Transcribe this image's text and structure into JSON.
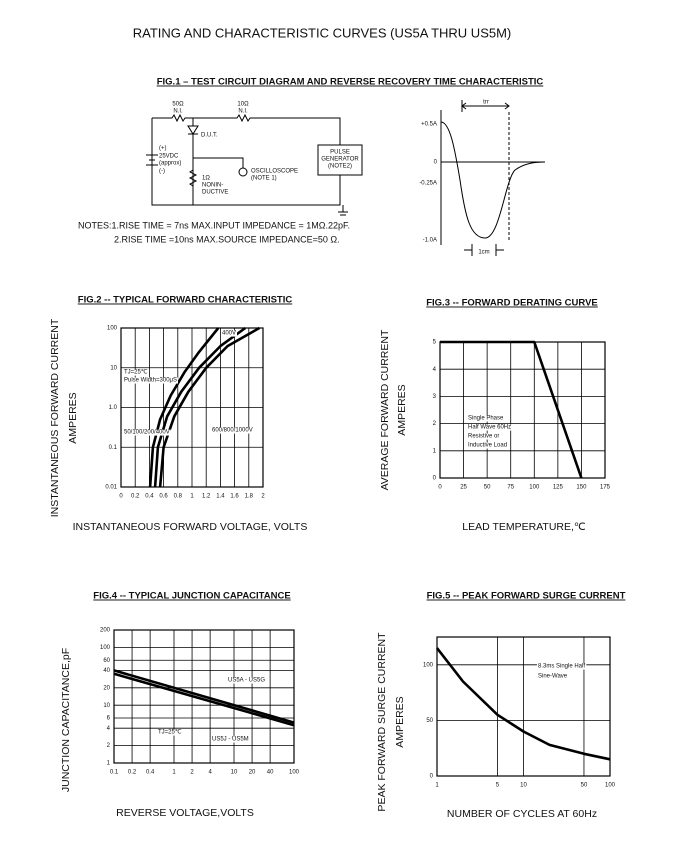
{
  "title": "RATING AND CHARACTERISTIC CURVES (US5A THRU US5M)",
  "fig1": {
    "title": "FIG.1 – TEST CIRCUIT DIAGRAM AND REVERSE RECOVERY TIME CHARACTERISTIC",
    "r1": [
      "50Ω",
      "N.I."
    ],
    "r2": [
      "10Ω",
      "N.I."
    ],
    "dut": "D.U.T.",
    "source": [
      "(+)",
      "25VDC",
      "(approx)",
      "(-)"
    ],
    "r3": [
      "1Ω",
      "NONIN-",
      "DUCTIVE"
    ],
    "scope": [
      "OSCILLOSCOPE",
      "(NOTE 1)"
    ],
    "generator": [
      "PULSE",
      "GENERATOR",
      "(NOTE2)"
    ],
    "notes": [
      "NOTES:1.RISE TIME = 7ns MAX.INPUT IMPEDANCE = 1MΩ.22pF.",
      "2.RISE TIME =10ns MAX.SOURCE IMPEDANCE=50 Ω."
    ],
    "wave": {
      "levels": [
        "+0.5A",
        "0",
        "-0.25A",
        "-1.0A"
      ],
      "trr": "trr",
      "scale": "1cm"
    }
  },
  "chart_data": [
    {
      "type": "line",
      "title": "FIG.2 -- TYPICAL FORWARD CHARACTERISTIC",
      "xlabel": "INSTANTANEOUS FORWARD VOLTAGE,  VOLTS",
      "ylabel": [
        "INSTANTANEOUS FORWARD CURRENT",
        "AMPERES"
      ],
      "xlim": [
        0,
        2
      ],
      "ylim": [
        0.01,
        100
      ],
      "ylog": true,
      "grid": true,
      "xticks": [
        0,
        0.2,
        0.4,
        0.6,
        0.8,
        1,
        1.2,
        1.4,
        1.6,
        1.8,
        2
      ],
      "yticks": [
        0.01,
        0.1,
        {
          "value": 1,
          "label": "1.0"
        },
        10,
        100
      ],
      "series": [
        {
          "color": "#000000",
          "x": [
            0.41,
            0.45,
            0.55,
            0.7,
            0.9,
            1.1,
            1.37
          ],
          "values": [
            0.01,
            0.1,
            0.5,
            2,
            8,
            25,
            100
          ]
        },
        {
          "color": "#000000",
          "x": [
            0.48,
            0.52,
            0.65,
            0.85,
            1.1,
            1.4,
            1.75
          ],
          "values": [
            0.01,
            0.1,
            0.6,
            2.5,
            10,
            35,
            100
          ]
        },
        {
          "color": "#000000",
          "x": [
            0.55,
            0.6,
            0.75,
            0.95,
            1.2,
            1.5,
            1.95
          ],
          "values": [
            0.01,
            0.1,
            0.6,
            2.5,
            10,
            35,
            100
          ]
        }
      ],
      "annotations": [
        "400V",
        "TJ=25℃",
        "Pulse Width=300μS",
        "50/100/200/400V",
        "600/800/1000V"
      ]
    },
    {
      "type": "line",
      "title": "FIG.3 -- FORWARD DERATING CURVE",
      "xlabel": "LEAD TEMPERATURE,℃",
      "ylabel": [
        "AVERAGE FORWARD CURRENT",
        "AMPERES"
      ],
      "xlim": [
        0,
        175
      ],
      "ylim": [
        0,
        5
      ],
      "grid": true,
      "xticks": [
        0,
        25,
        50,
        75,
        100,
        125,
        150,
        175
      ],
      "yticks": [
        0,
        1,
        2,
        3,
        4,
        5
      ],
      "series": [
        {
          "color": "#000000",
          "x": [
            0,
            100,
            150
          ],
          "values": [
            5,
            5,
            0
          ]
        }
      ],
      "annotations": [
        "Single Phase",
        "Half Wave 60Hz",
        "Resistive or",
        "Inductive Load"
      ]
    },
    {
      "type": "line",
      "title": "FIG.4 -- TYPICAL JUNCTION CAPACITANCE",
      "xlabel": "REVERSE VOLTAGE,VOLTS",
      "ylabel": [
        "JUNCTION CAPACITANCE,pF"
      ],
      "xlim": [
        0.1,
        100
      ],
      "ylim": [
        1,
        200
      ],
      "xlog": true,
      "ylog": true,
      "grid": true,
      "xticks": [
        0.1,
        0.2,
        0.4,
        1,
        2,
        4,
        10,
        20,
        40,
        100
      ],
      "yticks": [
        1,
        2,
        4,
        6,
        10,
        20,
        40,
        60,
        100,
        200
      ],
      "series": [
        {
          "color": "#000000",
          "x": [
            0.1,
            100
          ],
          "values": [
            40,
            5
          ]
        },
        {
          "color": "#000000",
          "x": [
            0.1,
            100
          ],
          "values": [
            35,
            4.5
          ]
        }
      ],
      "annotations": [
        "US5A - US5G",
        "US5J - US5M",
        "TJ=25℃"
      ]
    },
    {
      "type": "line",
      "title": "FIG.5 -- PEAK FORWARD SURGE CURRENT",
      "xlabel": "NUMBER OF CYCLES AT 60Hz",
      "ylabel": [
        "PEAK FORWARD SURGE CURRENT",
        "AMPERES"
      ],
      "xlim": [
        1,
        100
      ],
      "ylim": [
        0,
        125
      ],
      "xlog": true,
      "grid": true,
      "xticks": [
        1,
        5,
        10,
        50,
        100
      ],
      "yticks": [
        0,
        50,
        100
      ],
      "series": [
        {
          "color": "#000000",
          "x": [
            1,
            2,
            5,
            10,
            20,
            50,
            100
          ],
          "values": [
            115,
            85,
            55,
            40,
            28,
            20,
            15
          ]
        }
      ],
      "annotations": [
        "8.3ms Single Half",
        "Sine-Wave"
      ]
    }
  ]
}
